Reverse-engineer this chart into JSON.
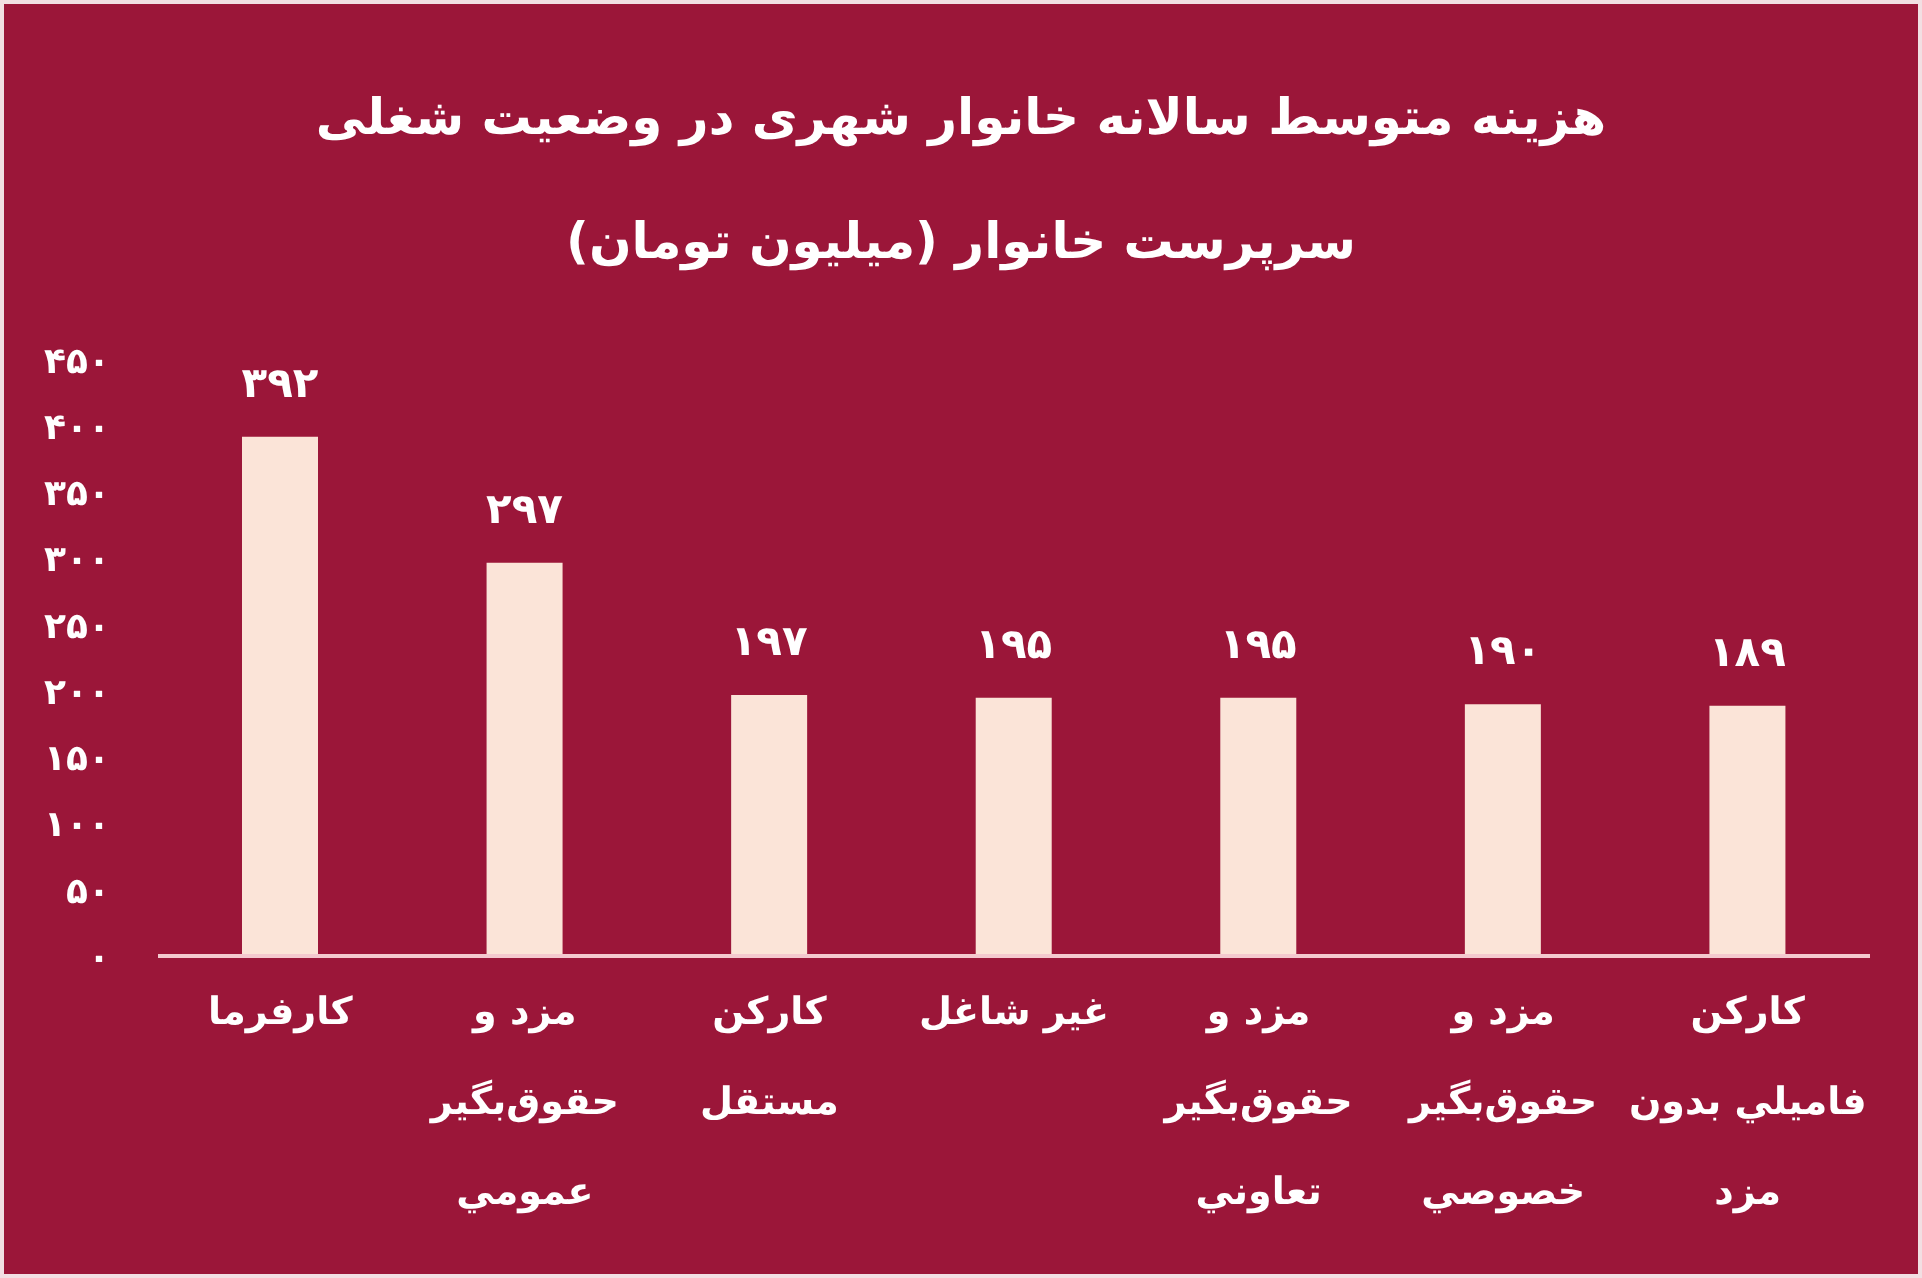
{
  "chart_data": {
    "type": "bar",
    "title": "هزینه متوسط سالانه خانوار شهری در وضعیت شغلی\nسرپرست خانوار (میلیون تومان)",
    "categories": [
      "کارفرما",
      "مزد و\nحقوق‌بگیر\nعمومي",
      "کارکن\nمستقل",
      "غیر شاغل",
      "مزد و\nحقوق‌بگیر\nتعاوني",
      "مزد و\nحقوق‌بگیر\nخصوصي",
      "کارکن\nفاميلي بدون\nمزد"
    ],
    "values": [
      392,
      297,
      197,
      195,
      195,
      190,
      189
    ],
    "value_labels": [
      "۳۹۲",
      "۲۹۷",
      "۱۹۷",
      "۱۹۵",
      "۱۹۵",
      "۱۹۰",
      "۱۸۹"
    ],
    "color": "#fbe4d8",
    "ylim": [
      0,
      450
    ],
    "yticks": [
      {
        "value": 0,
        "label": "۰"
      },
      {
        "value": 50,
        "label": "۵۰"
      },
      {
        "value": 100,
        "label": "۱۰۰"
      },
      {
        "value": 150,
        "label": "۱۵۰"
      },
      {
        "value": 200,
        "label": "۲۰۰"
      },
      {
        "value": 250,
        "label": "۲۵۰"
      },
      {
        "value": 300,
        "label": "۳۰۰"
      },
      {
        "value": 350,
        "label": "۳۵۰"
      },
      {
        "value": 400,
        "label": "۴۰۰"
      },
      {
        "value": 450,
        "label": "۴۵۰"
      }
    ]
  }
}
